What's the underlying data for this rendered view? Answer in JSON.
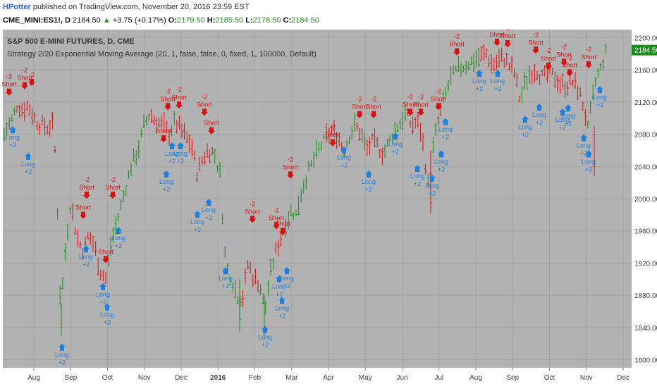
{
  "header": {
    "author": "HPotter",
    "published_text": "published on TradingView.com, November 20, 2016 23:59 EST",
    "symbol": "CME_MINI:ES1!, D",
    "last": "2184.50",
    "change_arrow": "▲",
    "change": "+3.75 (+0.17%)",
    "o_label": "O:",
    "o": "2179.50",
    "h_label": "H:",
    "h": "2185.50",
    "l_label": "L:",
    "l": "2178.50",
    "c_label": "C:",
    "c": "2184.50"
  },
  "chart": {
    "instrument_title": "S&P 500 E-MINI FUTURES, D, CME",
    "strategy_title": "Strategy 2/20 Exponential Moving Average (20, 1, false, false, 0, fixed, 1, 100000, Default)",
    "price_tag": "2184.50",
    "colors": {
      "background": "#b2b2b2",
      "up": "#1d8c1d",
      "down": "#e01010",
      "long": "#1e7fe0",
      "short": "#d81010",
      "grid": "#a3a3a3",
      "tag": "#1d8c1d"
    }
  },
  "chart_data": {
    "type": "ohlc",
    "ylim": [
      1790,
      2210
    ],
    "y_ticks": [
      1800,
      1840,
      1880,
      1920,
      1960,
      2000,
      2040,
      2080,
      2120,
      2160,
      2200
    ],
    "x_ticks": [
      "Aug",
      "Sep",
      "Oct",
      "Nov",
      "Dec",
      "2016",
      "Feb",
      "Mar",
      "Apr",
      "May",
      "Jun",
      "Jul",
      "Aug",
      "Sep",
      "Oct",
      "Nov",
      "Dec"
    ],
    "path": [
      [
        0,
        2060,
        "u"
      ],
      [
        8,
        2085,
        "u"
      ],
      [
        16,
        2095,
        "u"
      ],
      [
        24,
        2115,
        "u"
      ],
      [
        32,
        2110,
        "d"
      ],
      [
        40,
        2115,
        "d"
      ],
      [
        48,
        2100,
        "d"
      ],
      [
        56,
        2092,
        "d"
      ],
      [
        66,
        2088,
        "d"
      ],
      [
        76,
        2090,
        "d"
      ],
      [
        80,
        2030,
        "d"
      ],
      [
        86,
        1860,
        "u"
      ],
      [
        92,
        1930,
        "u"
      ],
      [
        100,
        1995,
        "u"
      ],
      [
        110,
        1950,
        "d"
      ],
      [
        118,
        1935,
        "d"
      ],
      [
        126,
        1955,
        "d"
      ],
      [
        134,
        1940,
        "d"
      ],
      [
        142,
        1910,
        "d"
      ],
      [
        150,
        1900,
        "d"
      ],
      [
        158,
        1945,
        "u"
      ],
      [
        166,
        1970,
        "u"
      ],
      [
        176,
        2005,
        "u"
      ],
      [
        186,
        2040,
        "u"
      ],
      [
        196,
        2060,
        "u"
      ],
      [
        204,
        2090,
        "u"
      ],
      [
        212,
        2105,
        "u"
      ],
      [
        222,
        2095,
        "d"
      ],
      [
        232,
        2090,
        "d"
      ],
      [
        240,
        2080,
        "d"
      ],
      [
        248,
        2095,
        "u"
      ],
      [
        256,
        2085,
        "d"
      ],
      [
        264,
        2075,
        "d"
      ],
      [
        272,
        2065,
        "d"
      ],
      [
        280,
        2030,
        "d"
      ],
      [
        288,
        2050,
        "d"
      ],
      [
        296,
        2060,
        "d"
      ],
      [
        304,
        2055,
        "d"
      ],
      [
        312,
        2030,
        "u"
      ],
      [
        320,
        1920,
        "u"
      ],
      [
        328,
        1900,
        "u"
      ],
      [
        336,
        1880,
        "u"
      ],
      [
        344,
        1875,
        "u"
      ],
      [
        352,
        1920,
        "d"
      ],
      [
        360,
        1900,
        "d"
      ],
      [
        368,
        1895,
        "d"
      ],
      [
        376,
        1860,
        "u"
      ],
      [
        382,
        1900,
        "u"
      ],
      [
        390,
        1930,
        "u"
      ],
      [
        398,
        1950,
        "d"
      ],
      [
        406,
        1970,
        "d"
      ],
      [
        414,
        1985,
        "u"
      ],
      [
        420,
        1980,
        "u"
      ],
      [
        428,
        2010,
        "u"
      ],
      [
        436,
        2030,
        "u"
      ],
      [
        444,
        2045,
        "u"
      ],
      [
        452,
        2060,
        "u"
      ],
      [
        462,
        2075,
        "u"
      ],
      [
        472,
        2085,
        "d"
      ],
      [
        480,
        2075,
        "d"
      ],
      [
        488,
        2060,
        "d"
      ],
      [
        496,
        2080,
        "u"
      ],
      [
        504,
        2090,
        "u"
      ],
      [
        512,
        2080,
        "d"
      ],
      [
        520,
        2060,
        "u"
      ],
      [
        528,
        2070,
        "d"
      ],
      [
        536,
        2065,
        "d"
      ],
      [
        544,
        2055,
        "d"
      ],
      [
        552,
        2070,
        "u"
      ],
      [
        560,
        2085,
        "u"
      ],
      [
        568,
        2095,
        "u"
      ],
      [
        576,
        2105,
        "u"
      ],
      [
        584,
        2090,
        "d"
      ],
      [
        592,
        2095,
        "d"
      ],
      [
        598,
        2080,
        "d"
      ],
      [
        604,
        2040,
        "d"
      ],
      [
        608,
        2010,
        "u"
      ],
      [
        614,
        2060,
        "d"
      ],
      [
        620,
        2090,
        "u"
      ],
      [
        626,
        2110,
        "d"
      ],
      [
        632,
        2130,
        "u"
      ],
      [
        640,
        2150,
        "u"
      ],
      [
        650,
        2160,
        "u"
      ],
      [
        660,
        2165,
        "u"
      ],
      [
        670,
        2170,
        "u"
      ],
      [
        680,
        2175,
        "u"
      ],
      [
        690,
        2180,
        "d"
      ],
      [
        698,
        2165,
        "d"
      ],
      [
        706,
        2170,
        "d"
      ],
      [
        714,
        2175,
        "d"
      ],
      [
        722,
        2165,
        "d"
      ],
      [
        730,
        2155,
        "d"
      ],
      [
        738,
        2120,
        "d"
      ],
      [
        744,
        2140,
        "u"
      ],
      [
        752,
        2155,
        "u"
      ],
      [
        760,
        2160,
        "d"
      ],
      [
        770,
        2150,
        "d"
      ],
      [
        780,
        2155,
        "d"
      ],
      [
        788,
        2150,
        "d"
      ],
      [
        796,
        2140,
        "d"
      ],
      [
        804,
        2140,
        "d"
      ],
      [
        812,
        2145,
        "d"
      ],
      [
        820,
        2135,
        "d"
      ],
      [
        828,
        2115,
        "d"
      ],
      [
        834,
        2085,
        "d"
      ],
      [
        840,
        2120,
        "u"
      ],
      [
        846,
        2150,
        "u"
      ],
      [
        852,
        2160,
        "u"
      ],
      [
        858,
        2178,
        "u"
      ],
      [
        862,
        2184,
        "u"
      ]
    ],
    "extreme_bars": [
      {
        "x": 87,
        "high": 1870,
        "low": 1830,
        "open": 1865,
        "close": 1840,
        "c": "u"
      },
      {
        "x": 340,
        "high": 1900,
        "low": 1835,
        "open": 1890,
        "close": 1850,
        "c": "u"
      },
      {
        "x": 375,
        "high": 1880,
        "low": 1825,
        "open": 1870,
        "close": 1835,
        "c": "u"
      },
      {
        "x": 611,
        "high": 2060,
        "low": 1982,
        "open": 2050,
        "close": 1995,
        "c": "d"
      },
      {
        "x": 843,
        "high": 2090,
        "low": 2028,
        "open": 2080,
        "close": 2040,
        "c": "d"
      }
    ],
    "signals": [
      {
        "type": "short",
        "x": 13,
        "price": 2128,
        "label": "Short",
        "qty": "-2"
      },
      {
        "type": "short",
        "x": 35,
        "price": 2136,
        "label": "Short",
        "qty": "-2"
      },
      {
        "type": "short",
        "x": 45,
        "price": 2140,
        "label": "",
        "qty": "-2"
      },
      {
        "type": "short",
        "x": 123,
        "price": 2000,
        "label": "Short",
        "qty": "-2"
      },
      {
        "type": "short",
        "x": 118,
        "price": 1975,
        "label": "Short",
        "qty": ""
      },
      {
        "type": "short",
        "x": 160,
        "price": 2000,
        "label": "Short",
        "qty": "-2"
      },
      {
        "type": "short",
        "x": 150,
        "price": 1920,
        "label": "Short",
        "qty": ""
      },
      {
        "type": "short",
        "x": 238,
        "price": 2110,
        "label": "Short",
        "qty": "-2"
      },
      {
        "type": "short",
        "x": 254,
        "price": 2112,
        "label": "Short",
        "qty": "-2"
      },
      {
        "type": "short",
        "x": 232,
        "price": 2070,
        "label": "Short",
        "qty": ""
      },
      {
        "type": "short",
        "x": 290,
        "price": 2103,
        "label": "Short",
        "qty": "-2"
      },
      {
        "type": "short",
        "x": 300,
        "price": 2080,
        "label": "Short",
        "qty": ""
      },
      {
        "type": "short",
        "x": 358,
        "price": 1970,
        "label": "Short",
        "qty": "-2"
      },
      {
        "type": "short",
        "x": 392,
        "price": 1962,
        "label": "Short",
        "qty": "-2"
      },
      {
        "type": "short",
        "x": 401,
        "price": 1955,
        "label": "Short",
        "qty": ""
      },
      {
        "type": "short",
        "x": 412,
        "price": 2025,
        "label": "Short",
        "qty": "-2"
      },
      {
        "type": "short",
        "x": 472,
        "price": 2065,
        "label": "Short",
        "qty": "-2"
      },
      {
        "type": "short",
        "x": 510,
        "price": 2100,
        "label": "Short",
        "qty": "-2"
      },
      {
        "type": "short",
        "x": 530,
        "price": 2100,
        "label": "Short",
        "qty": "-2"
      },
      {
        "type": "short",
        "x": 582,
        "price": 2103,
        "label": "Short",
        "qty": "-2"
      },
      {
        "type": "short",
        "x": 597,
        "price": 2103,
        "label": "Short",
        "qty": "-2"
      },
      {
        "type": "short",
        "x": 622,
        "price": 2110,
        "label": "Short",
        "qty": "-2"
      },
      {
        "type": "short",
        "x": 648,
        "price": 2178,
        "label": "Short",
        "qty": "-2"
      },
      {
        "type": "short",
        "x": 705,
        "price": 2190,
        "label": "Short",
        "qty": "-2"
      },
      {
        "type": "short",
        "x": 720,
        "price": 2188,
        "label": "Short",
        "qty": "-2"
      },
      {
        "type": "short",
        "x": 760,
        "price": 2180,
        "label": "Short",
        "qty": "-2"
      },
      {
        "type": "short",
        "x": 778,
        "price": 2160,
        "label": "Short",
        "qty": "-2"
      },
      {
        "type": "short",
        "x": 800,
        "price": 2165,
        "label": "Short",
        "qty": "-2"
      },
      {
        "type": "short",
        "x": 808,
        "price": 2152,
        "label": "Short",
        "qty": "-2"
      },
      {
        "type": "short",
        "x": 835,
        "price": 2162,
        "label": "Short",
        "qty": "-2"
      },
      {
        "type": "long",
        "x": 18,
        "price": 2090,
        "label": "Long",
        "qty": "+2"
      },
      {
        "type": "long",
        "x": 40,
        "price": 2057,
        "label": "Long",
        "qty": "+2"
      },
      {
        "type": "long",
        "x": 88,
        "price": 1820,
        "label": "Long",
        "qty": "+2"
      },
      {
        "type": "long",
        "x": 122,
        "price": 1942,
        "label": "Long",
        "qty": "+2"
      },
      {
        "type": "long",
        "x": 146,
        "price": 1895,
        "label": "Long",
        "qty": "+2"
      },
      {
        "type": "long",
        "x": 152,
        "price": 1870,
        "label": "Long",
        "qty": "+2"
      },
      {
        "type": "long",
        "x": 168,
        "price": 1965,
        "label": "Long",
        "qty": "+2"
      },
      {
        "type": "long",
        "x": 236,
        "price": 2035,
        "label": "Long",
        "qty": "+2"
      },
      {
        "type": "long",
        "x": 244,
        "price": 2070,
        "label": "Long",
        "qty": "+2"
      },
      {
        "type": "long",
        "x": 256,
        "price": 2070,
        "label": "Long",
        "qty": "+2"
      },
      {
        "type": "long",
        "x": 280,
        "price": 1985,
        "label": "Long",
        "qty": "+2"
      },
      {
        "type": "long",
        "x": 296,
        "price": 2000,
        "label": "Long",
        "qty": "+2"
      },
      {
        "type": "long",
        "x": 320,
        "price": 1915,
        "label": "Long",
        "qty": "+2"
      },
      {
        "type": "long",
        "x": 376,
        "price": 1842,
        "label": "Long",
        "qty": "+2"
      },
      {
        "type": "long",
        "x": 396,
        "price": 1905,
        "label": "Long",
        "qty": "+2"
      },
      {
        "type": "long",
        "x": 400,
        "price": 1878,
        "label": "Long",
        "qty": "+2"
      },
      {
        "type": "long",
        "x": 407,
        "price": 1915,
        "label": "Long",
        "qty": "+2"
      },
      {
        "type": "long",
        "x": 488,
        "price": 2065,
        "label": "Long",
        "qty": "+2"
      },
      {
        "type": "long",
        "x": 523,
        "price": 2035,
        "label": "Long",
        "qty": "+2"
      },
      {
        "type": "long",
        "x": 561,
        "price": 2082,
        "label": "Long",
        "qty": "+2"
      },
      {
        "type": "long",
        "x": 592,
        "price": 2042,
        "label": "Long",
        "qty": "+2"
      },
      {
        "type": "long",
        "x": 613,
        "price": 2030,
        "label": "Long",
        "qty": "+2"
      },
      {
        "type": "long",
        "x": 626,
        "price": 2060,
        "label": "Long",
        "qty": "+2"
      },
      {
        "type": "long",
        "x": 632,
        "price": 2100,
        "label": "Long",
        "qty": "+2"
      },
      {
        "type": "long",
        "x": 680,
        "price": 2160,
        "label": "Long",
        "qty": "+2"
      },
      {
        "type": "long",
        "x": 706,
        "price": 2160,
        "label": "Long",
        "qty": "+2"
      },
      {
        "type": "long",
        "x": 745,
        "price": 2103,
        "label": "Long",
        "qty": "+2"
      },
      {
        "type": "long",
        "x": 765,
        "price": 2118,
        "label": "Long",
        "qty": "+2"
      },
      {
        "type": "long",
        "x": 798,
        "price": 2112,
        "label": "Long",
        "qty": "+2"
      },
      {
        "type": "long",
        "x": 806,
        "price": 2117,
        "label": "Long",
        "qty": "+2"
      },
      {
        "type": "long",
        "x": 828,
        "price": 2080,
        "label": "Long",
        "qty": "+2"
      },
      {
        "type": "long",
        "x": 835,
        "price": 2060,
        "label": "Long",
        "qty": "+2"
      },
      {
        "type": "long",
        "x": 851,
        "price": 2140,
        "label": "Long",
        "qty": "+2"
      }
    ]
  }
}
